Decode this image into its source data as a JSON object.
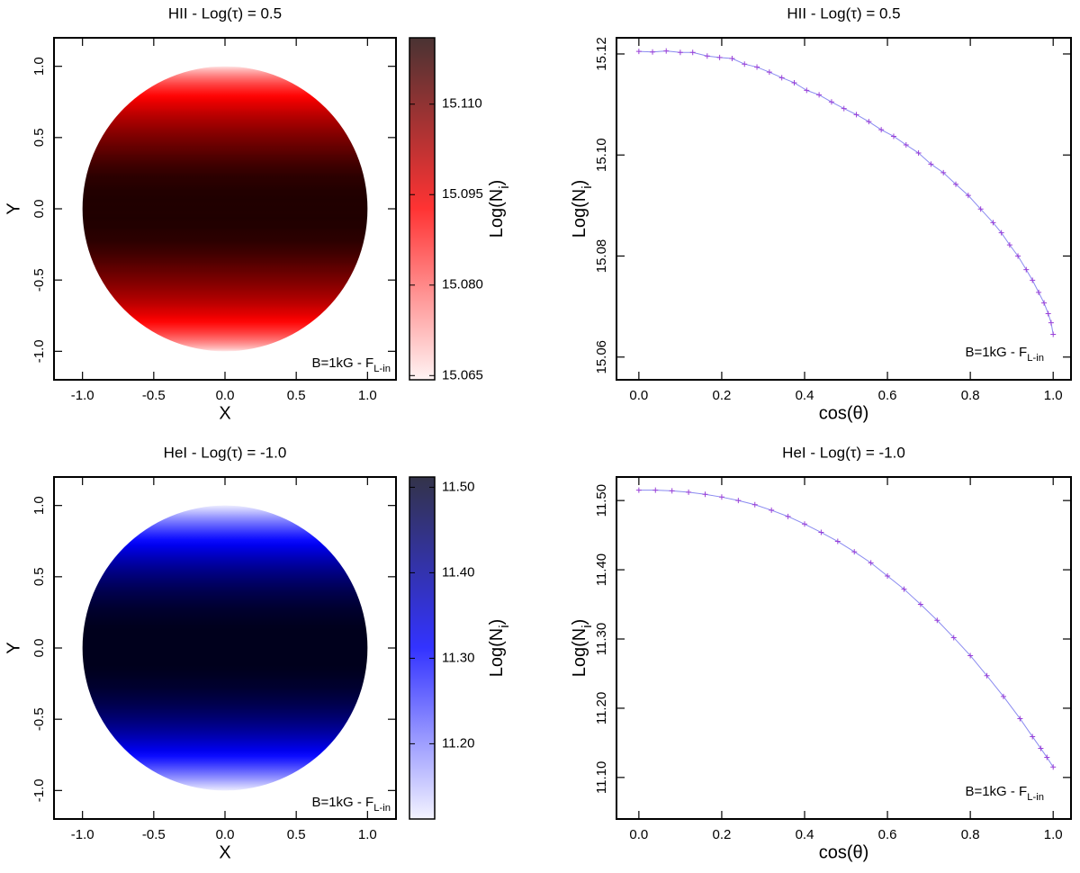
{
  "chart_data": [
    {
      "type": "disk",
      "title": "HII - Log(τ) = 0.5",
      "xlabel": "X",
      "ylabel": "Y",
      "xlim": [
        -1.2,
        1.2
      ],
      "ylim": [
        -1.2,
        1.2
      ],
      "xticks": [
        {
          "value": -1.0,
          "label": "-1.0"
        },
        -0.5,
        {
          "value": 0.0,
          "label": "0.0"
        },
        0.5,
        {
          "value": 1.0,
          "label": "1.0"
        }
      ],
      "yticks": [
        {
          "value": -1.0,
          "label": "-1.0"
        },
        -0.5,
        {
          "value": 0.0,
          "label": "0.0"
        },
        0.5,
        {
          "value": 1.0,
          "label": "1.0"
        }
      ],
      "colors": [
        "#fff0f0",
        "#ff0000",
        "#1c0000"
      ],
      "clim": [
        15.0643,
        15.121
      ],
      "cticks": [
        15.065,
        {
          "value": 15.08,
          "label": "15.080"
        },
        15.095,
        {
          "value": 15.11,
          "label": "15.110"
        }
      ],
      "clabel": {
        "text": "Log(N",
        "sub": "i",
        "tail": ")"
      },
      "annotation": {
        "text": "B=1kG - F",
        "sub": "L-in"
      }
    },
    {
      "type": "line",
      "title": "HII - Log(τ) = 0.5",
      "xlabel": "cos(θ)",
      "ylabel": {
        "text": "Log(N",
        "sub": "i",
        "tail": ")"
      },
      "xlim": [
        -0.054,
        1.043
      ],
      "ylim": [
        15.0555,
        15.1232
      ],
      "xticks": [
        {
          "value": 0.0,
          "label": "0.0"
        },
        0.2,
        0.4,
        0.6,
        0.8,
        {
          "value": 1.0,
          "label": "1.0"
        }
      ],
      "yticks": [
        15.06,
        15.08,
        {
          "value": 15.1,
          "label": "15.10"
        },
        15.12
      ],
      "x": [
        0,
        0.033,
        0.066,
        0.1,
        0.13,
        0.165,
        0.195,
        0.225,
        0.255,
        0.285,
        0.315,
        0.345,
        0.375,
        0.405,
        0.435,
        0.465,
        0.495,
        0.525,
        0.555,
        0.585,
        0.615,
        0.645,
        0.675,
        0.705,
        0.735,
        0.765,
        0.795,
        0.825,
        0.855,
        0.875,
        0.895,
        0.915,
        0.935,
        0.95,
        0.965,
        0.978,
        0.988,
        0.995,
        1.0
      ],
      "values": [
        15.1205,
        15.1204,
        15.1206,
        15.1203,
        15.1203,
        15.1196,
        15.1193,
        15.1191,
        15.118,
        15.1174,
        15.1164,
        15.1153,
        15.1143,
        15.1128,
        15.1119,
        15.1105,
        15.1092,
        15.108,
        15.1066,
        15.105,
        15.1037,
        15.102,
        15.1004,
        15.0982,
        15.0965,
        15.0942,
        15.092,
        15.0893,
        15.0866,
        15.0846,
        15.0822,
        15.08,
        15.0773,
        15.0752,
        15.0728,
        15.0707,
        15.0686,
        15.0668,
        15.0645
      ],
      "color": "#8a8af0",
      "marker_color": "#9a40d8",
      "annotation": {
        "text": "B=1kG - F",
        "sub": "L-in"
      }
    },
    {
      "type": "disk",
      "title": "HeI - Log(τ) = -1.0",
      "xlabel": "X",
      "ylabel": "Y",
      "xlim": [
        -1.2,
        1.2
      ],
      "ylim": [
        -1.2,
        1.2
      ],
      "xticks": [
        {
          "value": -1.0,
          "label": "-1.0"
        },
        -0.5,
        {
          "value": 0.0,
          "label": "0.0"
        },
        0.5,
        {
          "value": 1.0,
          "label": "1.0"
        }
      ],
      "yticks": [
        {
          "value": -1.0,
          "label": "-1.0"
        },
        -0.5,
        {
          "value": 0.0,
          "label": "0.0"
        },
        0.5,
        {
          "value": 1.0,
          "label": "1.0"
        }
      ],
      "colors": [
        "#f0f0ff",
        "#0000ff",
        "#00001c"
      ],
      "clim": [
        11.112,
        11.512
      ],
      "cticks": [
        {
          "value": 11.2,
          "label": "11.20"
        },
        {
          "value": 11.3,
          "label": "11.30"
        },
        {
          "value": 11.4,
          "label": "11.40"
        },
        {
          "value": 11.5,
          "label": "11.50"
        }
      ],
      "clabel": {
        "text": "Log(N",
        "sub": "i",
        "tail": ")"
      },
      "annotation": {
        "text": "B=1kG - F",
        "sub": "L-in"
      }
    },
    {
      "type": "line",
      "title": "HeI - Log(τ) = -1.0",
      "xlabel": "cos(θ)",
      "ylabel": {
        "text": "Log(N",
        "sub": "i",
        "tail": ")"
      },
      "xlim": [
        -0.054,
        1.043
      ],
      "ylim": [
        11.04,
        11.534
      ],
      "xticks": [
        {
          "value": 0.0,
          "label": "0.0"
        },
        0.2,
        0.4,
        0.6,
        0.8,
        {
          "value": 1.0,
          "label": "1.0"
        }
      ],
      "yticks": [
        {
          "value": 11.1,
          "label": "11.10"
        },
        {
          "value": 11.2,
          "label": "11.20"
        },
        {
          "value": 11.3,
          "label": "11.30"
        },
        {
          "value": 11.4,
          "label": "11.40"
        },
        {
          "value": 11.5,
          "label": "11.50"
        }
      ],
      "x": [
        0,
        0.04,
        0.08,
        0.12,
        0.16,
        0.2,
        0.24,
        0.28,
        0.32,
        0.36,
        0.4,
        0.44,
        0.48,
        0.52,
        0.56,
        0.6,
        0.64,
        0.68,
        0.72,
        0.76,
        0.8,
        0.84,
        0.88,
        0.92,
        0.95,
        0.97,
        0.985,
        1.0
      ],
      "values": [
        11.515,
        11.515,
        11.514,
        11.512,
        11.509,
        11.505,
        11.5,
        11.494,
        11.486,
        11.477,
        11.466,
        11.454,
        11.441,
        11.426,
        11.41,
        11.391,
        11.372,
        11.35,
        11.327,
        11.302,
        11.276,
        11.247,
        11.217,
        11.185,
        11.159,
        11.142,
        11.129,
        11.115
      ],
      "color": "#8a8af0",
      "marker_color": "#9a40d8",
      "annotation": {
        "text": "B=1kG - F",
        "sub": "L-in"
      }
    }
  ]
}
